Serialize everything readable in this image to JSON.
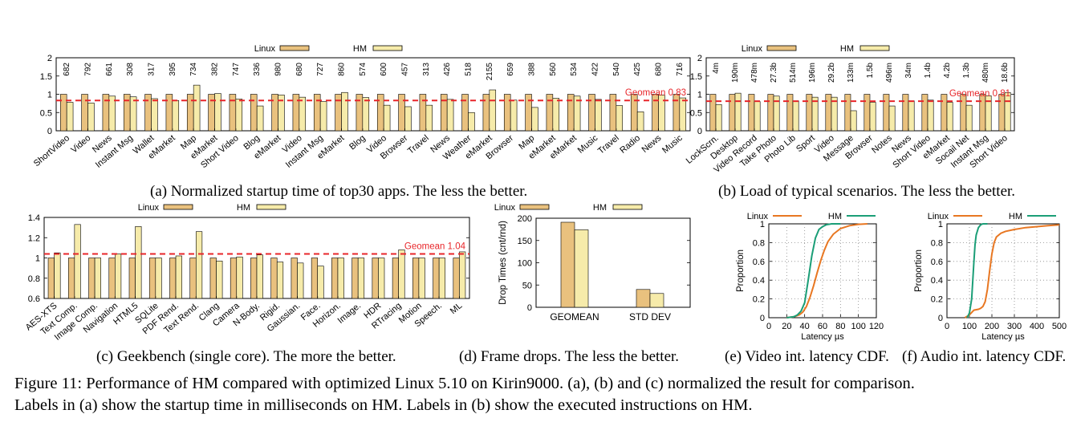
{
  "figure": {
    "line1": "Figure 11: Performance of HM compared with optimized Linux 5.10 on Kirin9000. (a), (b) and (c) normalized the result for comparison.",
    "line2": "Labels in (a) show the startup time in milliseconds on HM. Labels in (b) show the executed instructions on HM."
  },
  "captions": {
    "a": "(a) Normalized startup time of top30 apps. The less the better.",
    "b": "(b) Load of typical scenarios. The less the better.",
    "c": "(c) Geekbench (single core). The more the better.",
    "d": "(d) Frame drops. The less the better.",
    "e": "(e) Video int. latency CDF.",
    "f": "(f) Audio int. latency CDF."
  },
  "colors": {
    "linux": "#e9c17e",
    "hm": "#f6ebaa",
    "geomean": "#e8262a",
    "linux_line": "#e87722",
    "hm_line": "#1b9e77"
  },
  "chart_data": [
    {
      "id": "a",
      "type": "bar",
      "legend": [
        "Linux",
        "HM"
      ],
      "ylim": [
        0,
        2
      ],
      "yticks": [
        "0",
        "0.5",
        "1",
        "1.5",
        "2"
      ],
      "geomean": 0.83,
      "geomean_label": "Geomean 0.83",
      "categories": [
        "ShortVideo",
        "Video",
        "News",
        "Instant Msg",
        "Wallet",
        "eMarket",
        "Map",
        "eMarket",
        "Short Video",
        "Blog",
        "eMarket",
        "Video",
        "Instant Msg",
        "eMarket",
        "Blog",
        "Video",
        "Browser",
        "Travel",
        "News",
        "Weather",
        "eMarket",
        "Browser",
        "Map",
        "eMarket",
        "eMarket",
        "Music",
        "Travel",
        "Radio",
        "News",
        "Music"
      ],
      "labels": [
        "682",
        "792",
        "661",
        "308",
        "317",
        "395",
        "734",
        "382",
        "747",
        "336",
        "980",
        "680",
        "727",
        "860",
        "574",
        "600",
        "457",
        "313",
        "426",
        "518",
        "2155",
        "659",
        "388",
        "560",
        "534",
        "422",
        "540",
        "425",
        "680",
        "716"
      ],
      "series": [
        {
          "name": "Linux",
          "values": [
            1,
            1,
            1,
            1,
            1,
            1,
            1,
            1,
            1,
            1,
            1,
            1,
            1,
            1,
            1,
            1,
            1,
            1,
            1,
            1,
            1,
            1,
            1,
            1,
            1,
            1,
            1,
            1,
            1,
            1
          ]
        },
        {
          "name": "HM",
          "values": [
            0.78,
            0.76,
            0.95,
            0.93,
            0.88,
            0.83,
            1.25,
            1.02,
            0.87,
            0.68,
            0.98,
            0.92,
            0.8,
            1.05,
            0.91,
            0.7,
            0.66,
            0.7,
            0.86,
            0.5,
            1.12,
            0.84,
            0.64,
            0.89,
            0.95,
            0.86,
            0.69,
            0.52,
            0.98,
            0.9
          ]
        }
      ]
    },
    {
      "id": "b",
      "type": "bar",
      "legend": [
        "Linux",
        "HM"
      ],
      "ylim": [
        0,
        2
      ],
      "yticks": [
        "0",
        "0.5",
        "1",
        "1.5",
        "2"
      ],
      "geomean": 0.81,
      "geomean_label": "Geomean 0.81",
      "categories": [
        "LockScrn.",
        "Desktop",
        "Video Record",
        "Take Photo",
        "Photo Lib",
        "Sport",
        "Video",
        "Message",
        "Browser",
        "Notes",
        "News",
        "Short Video",
        "eMarket",
        "Socail Net",
        "Instant Msg",
        "Short Video"
      ],
      "labels": [
        "4m",
        "190m",
        "478m",
        "27.3b",
        "514m",
        "196m",
        "29.2b",
        "133m",
        "1.5b",
        "496m",
        "34m",
        "1.4b",
        "4.2b",
        "1.3b",
        "480m",
        "18.6b"
      ],
      "series": [
        {
          "name": "Linux",
          "values": [
            1,
            1,
            1,
            1,
            1,
            1,
            1,
            1,
            1,
            1,
            1,
            1,
            1,
            1,
            1,
            1
          ]
        },
        {
          "name": "HM",
          "values": [
            0.72,
            1.03,
            0.8,
            0.95,
            0.82,
            0.92,
            0.92,
            0.55,
            0.78,
            0.68,
            0.82,
            0.84,
            0.78,
            0.7,
            0.96,
            1.05
          ]
        }
      ]
    },
    {
      "id": "c",
      "type": "bar",
      "legend": [
        "Linux",
        "HM"
      ],
      "ylim": [
        0.6,
        1.4
      ],
      "yticks": [
        "0.6",
        "0.8",
        "1",
        "1.2",
        "1.4"
      ],
      "geomean": 1.04,
      "geomean_label": "Geomean 1.04",
      "categories": [
        "AES-XTS",
        "Text Comp.",
        "Image Comp.",
        "Navigation",
        "HTML5",
        "SQLite",
        "PDF Rend.",
        "Text Rend.",
        "Clang",
        "Camera",
        "N-Body.",
        "Rigid.",
        "Gaussian.",
        "Face.",
        "Horizon.",
        "Image.",
        "HDR",
        "RTracing",
        "Motion",
        "Speech.",
        "ML"
      ],
      "series": [
        {
          "name": "Linux",
          "values": [
            1,
            1,
            1,
            1,
            1,
            1,
            1,
            1,
            1,
            1,
            1,
            1,
            1,
            1,
            1,
            1,
            1,
            1,
            1,
            1,
            1
          ]
        },
        {
          "name": "HM",
          "values": [
            1.05,
            1.33,
            1.0,
            1.04,
            1.31,
            1.0,
            1.02,
            1.26,
            0.97,
            1.01,
            1.03,
            0.96,
            0.95,
            0.92,
            1.0,
            1.0,
            1.0,
            1.08,
            1.0,
            1.0,
            1.06
          ]
        }
      ]
    },
    {
      "id": "d",
      "type": "bar",
      "legend": [
        "Linux",
        "HM"
      ],
      "ylabel": "Drop Times (cnt/rnd)",
      "ylim": [
        0,
        200
      ],
      "yticks": [
        "0",
        "50",
        "100",
        "150",
        "200"
      ],
      "categories": [
        "GEOMEAN",
        "STD DEV"
      ],
      "series": [
        {
          "name": "Linux",
          "values": [
            191,
            40
          ]
        },
        {
          "name": "HM",
          "values": [
            174,
            31
          ]
        }
      ]
    },
    {
      "id": "e",
      "type": "line",
      "legend": [
        "Linux",
        "HM"
      ],
      "xlabel": "Latency µs",
      "ylabel": "Proportion",
      "xlim": [
        0,
        120
      ],
      "ylim": [
        0,
        1
      ],
      "xticks": [
        "0",
        "20",
        "40",
        "60",
        "80",
        "100",
        "120"
      ],
      "yticks": [
        "0",
        "0.2",
        "0.4",
        "0.6",
        "0.8",
        "1"
      ],
      "series": [
        {
          "name": "Linux",
          "x": [
            20,
            28,
            34,
            38,
            42,
            46,
            50,
            54,
            58,
            62,
            66,
            72,
            80,
            90,
            100,
            110
          ],
          "y": [
            0,
            0.01,
            0.03,
            0.06,
            0.12,
            0.22,
            0.34,
            0.48,
            0.61,
            0.72,
            0.81,
            0.89,
            0.95,
            0.98,
            0.995,
            1
          ]
        },
        {
          "name": "HM",
          "x": [
            20,
            28,
            32,
            36,
            40,
            44,
            48,
            52,
            56,
            60,
            64,
            70,
            80
          ],
          "y": [
            0,
            0.01,
            0.03,
            0.07,
            0.16,
            0.4,
            0.66,
            0.85,
            0.94,
            0.97,
            0.99,
            1,
            1
          ]
        }
      ]
    },
    {
      "id": "f",
      "type": "line",
      "legend": [
        "Linux",
        "HM"
      ],
      "xlabel": "Latency µs",
      "ylabel": "Proportion",
      "xlim": [
        0,
        500
      ],
      "ylim": [
        0,
        1
      ],
      "xticks": [
        "0",
        "100",
        "200",
        "300",
        "400",
        "500"
      ],
      "yticks": [
        "0",
        "0.2",
        "0.4",
        "0.6",
        "0.8",
        "1"
      ],
      "series": [
        {
          "name": "Linux",
          "x": [
            80,
            100,
            120,
            140,
            150,
            160,
            170,
            180,
            190,
            200,
            210,
            220,
            240,
            260,
            300,
            350,
            400,
            450,
            500
          ],
          "y": [
            0,
            0.03,
            0.08,
            0.09,
            0.1,
            0.12,
            0.17,
            0.3,
            0.5,
            0.68,
            0.8,
            0.86,
            0.9,
            0.92,
            0.94,
            0.96,
            0.97,
            0.98,
            0.99
          ]
        },
        {
          "name": "HM",
          "x": [
            90,
            100,
            110,
            115,
            120,
            125,
            130,
            140,
            150,
            160,
            180
          ],
          "y": [
            0,
            0.05,
            0.2,
            0.4,
            0.6,
            0.78,
            0.88,
            0.96,
            0.99,
            1,
            1
          ]
        }
      ]
    }
  ]
}
